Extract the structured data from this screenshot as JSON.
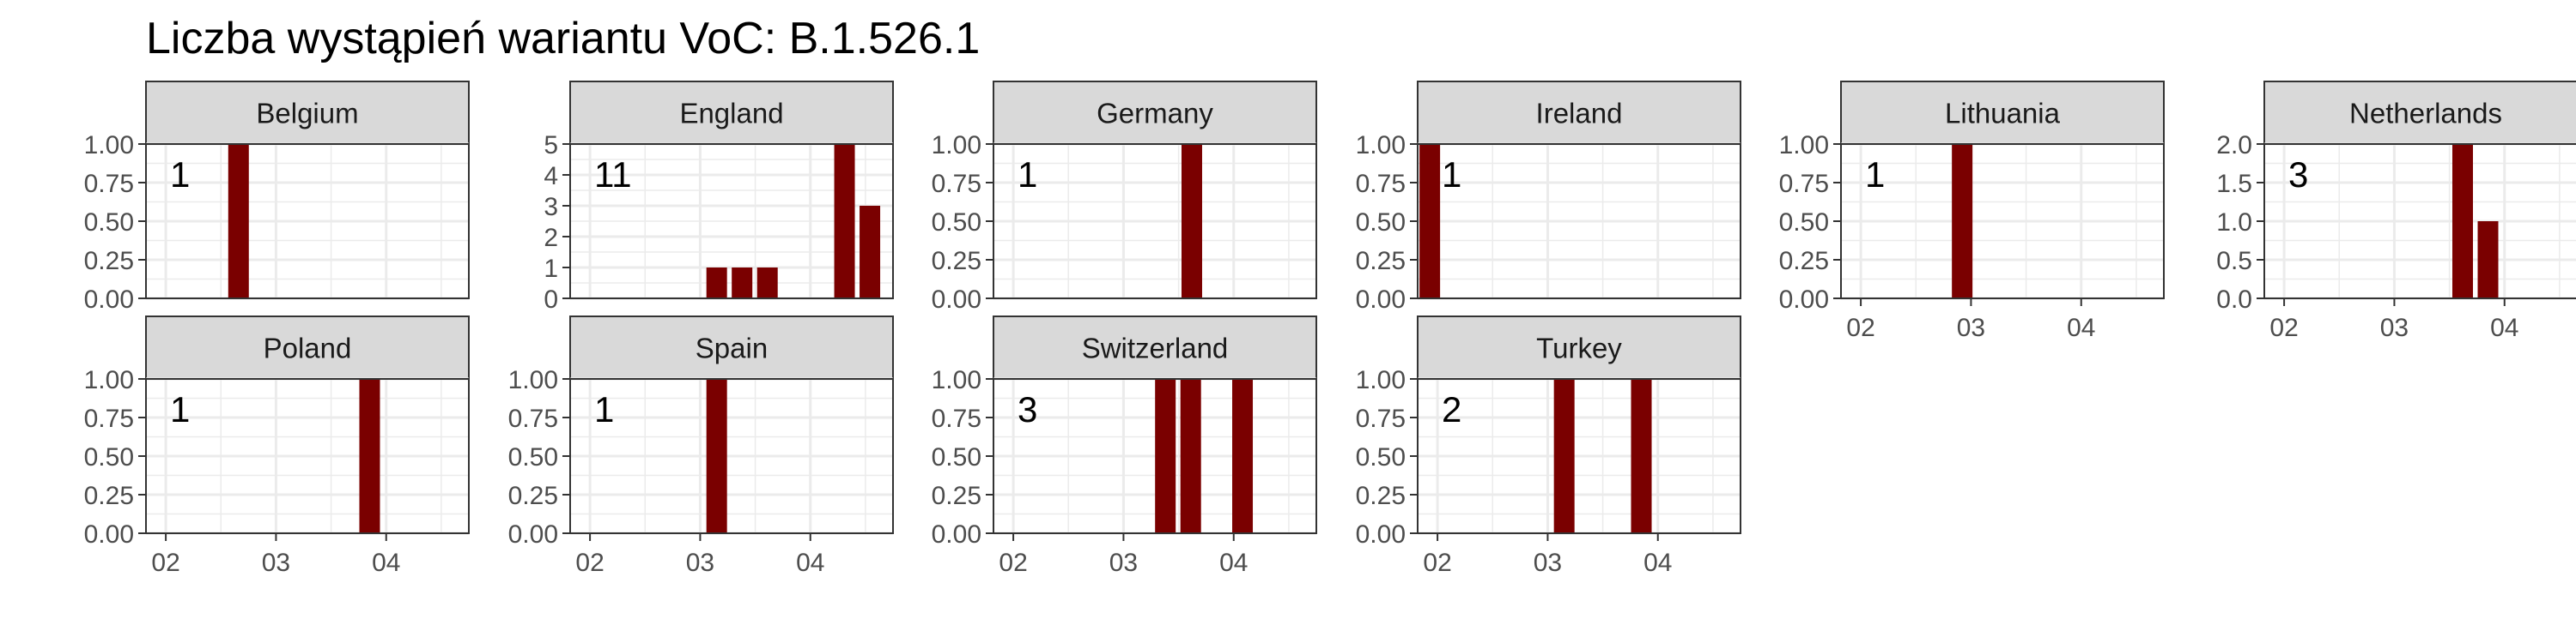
{
  "chart_data": {
    "type": "bar",
    "title": "Liczba wystąpień wariantu VoC: B.1.526.1",
    "xlabel": "",
    "ylabel": "",
    "x_tick_labels": [
      "02",
      "03",
      "04"
    ],
    "x_ticks_months": [
      2,
      3,
      4
    ],
    "xlim_months": [
      1.82,
      4.75
    ],
    "colors": {
      "bar": "#7a0000",
      "strip": "#d9d9d9",
      "grid": "#ebebeb"
    },
    "grid": true,
    "legend": "none",
    "panels": [
      {
        "name": "Belgium",
        "count_label": "1",
        "ylim": [
          0,
          1
        ],
        "y_ticks": [
          "0.00",
          "0.25",
          "0.50",
          "0.75",
          "1.00"
        ],
        "bars": [
          {
            "x": 2.66,
            "y": 1
          }
        ]
      },
      {
        "name": "England",
        "count_label": "11",
        "ylim": [
          0,
          5
        ],
        "y_ticks": [
          "0",
          "1",
          "2",
          "3",
          "4",
          "5"
        ],
        "bars": [
          {
            "x": 3.15,
            "y": 1
          },
          {
            "x": 3.38,
            "y": 1
          },
          {
            "x": 3.61,
            "y": 1
          },
          {
            "x": 4.31,
            "y": 5
          },
          {
            "x": 4.54,
            "y": 3
          }
        ]
      },
      {
        "name": "Germany",
        "count_label": "1",
        "ylim": [
          0,
          1
        ],
        "y_ticks": [
          "0.00",
          "0.25",
          "0.50",
          "0.75",
          "1.00"
        ],
        "bars": [
          {
            "x": 3.62,
            "y": 1
          }
        ]
      },
      {
        "name": "Ireland",
        "count_label": "1",
        "ylim": [
          0,
          1
        ],
        "y_ticks": [
          "0.00",
          "0.25",
          "0.50",
          "0.75",
          "1.00"
        ],
        "bars": [
          {
            "x": 1.93,
            "y": 1
          }
        ]
      },
      {
        "name": "Lithuania",
        "count_label": "1",
        "ylim": [
          0,
          1
        ],
        "y_ticks": [
          "0.00",
          "0.25",
          "0.50",
          "0.75",
          "1.00"
        ],
        "bars": [
          {
            "x": 2.92,
            "y": 1
          }
        ]
      },
      {
        "name": "Netherlands",
        "count_label": "3",
        "ylim": [
          0,
          2
        ],
        "y_ticks": [
          "0.0",
          "0.5",
          "1.0",
          "1.5",
          "2.0"
        ],
        "bars": [
          {
            "x": 3.62,
            "y": 2
          },
          {
            "x": 3.85,
            "y": 1
          }
        ]
      },
      {
        "name": "Poland",
        "count_label": "1",
        "ylim": [
          0,
          1
        ],
        "y_ticks": [
          "0.00",
          "0.25",
          "0.50",
          "0.75",
          "1.00"
        ],
        "bars": [
          {
            "x": 3.85,
            "y": 1
          }
        ]
      },
      {
        "name": "Spain",
        "count_label": "1",
        "ylim": [
          0,
          1
        ],
        "y_ticks": [
          "0.00",
          "0.25",
          "0.50",
          "0.75",
          "1.00"
        ],
        "bars": [
          {
            "x": 3.15,
            "y": 1
          }
        ]
      },
      {
        "name": "Switzerland",
        "count_label": "3",
        "ylim": [
          0,
          1
        ],
        "y_ticks": [
          "0.00",
          "0.25",
          "0.50",
          "0.75",
          "1.00"
        ],
        "bars": [
          {
            "x": 3.38,
            "y": 1
          },
          {
            "x": 3.61,
            "y": 1
          },
          {
            "x": 4.08,
            "y": 1
          }
        ]
      },
      {
        "name": "Turkey",
        "count_label": "2",
        "ylim": [
          0,
          1
        ],
        "y_ticks": [
          "0.00",
          "0.25",
          "0.50",
          "0.75",
          "1.00"
        ],
        "bars": [
          {
            "x": 3.15,
            "y": 1
          },
          {
            "x": 3.85,
            "y": 1
          }
        ]
      }
    ]
  }
}
